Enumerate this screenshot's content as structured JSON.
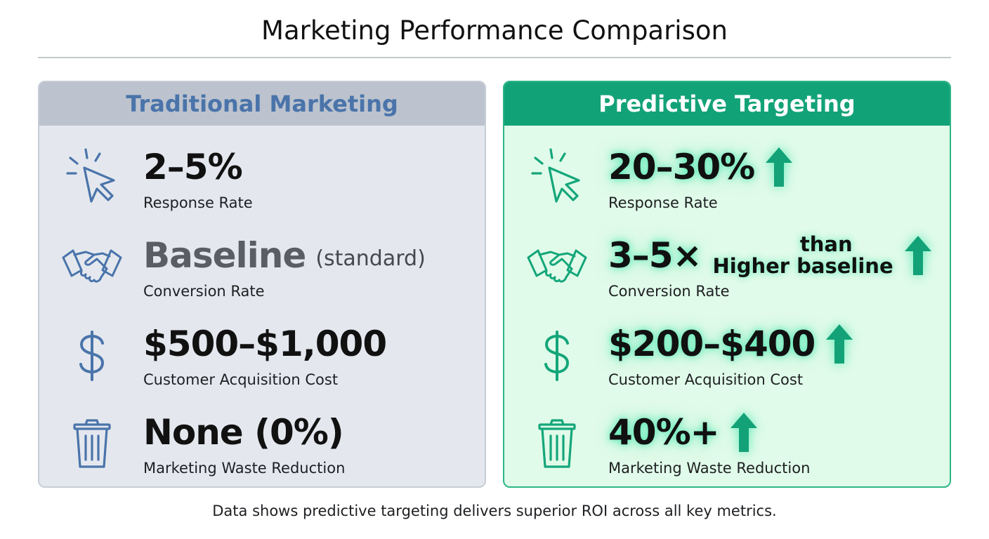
{
  "title": "Marketing Performance Comparison",
  "footer": "Data shows predictive targeting delivers superior ROI across all key metrics.",
  "colors": {
    "traditional_accent": "#4a74aa",
    "traditional_header_bg": "#bcc3ce",
    "predictive_accent": "#12a278",
    "predictive_bg": "#e0fbe9"
  },
  "traditional": {
    "header": "Traditional Marketing",
    "metrics": [
      {
        "icon": "cursor-click-icon",
        "value": "2–5%",
        "label": "Response Rate"
      },
      {
        "icon": "handshake-icon",
        "value": "Baseline",
        "qualifier": "(standard)",
        "label": "Conversion Rate"
      },
      {
        "icon": "dollar-icon",
        "value": "$500–$1,000",
        "label": "Customer Acquisition Cost"
      },
      {
        "icon": "trash-icon",
        "value": "None (0%)",
        "label": "Marketing Waste Reduction"
      }
    ]
  },
  "predictive": {
    "header": "Predictive Targeting",
    "metrics": [
      {
        "icon": "cursor-click-icon",
        "value": "20–30%",
        "label": "Response Rate",
        "trend": "up-arrow-icon"
      },
      {
        "icon": "handshake-icon",
        "value": "3–5×",
        "qualifier_top": "than",
        "qualifier_bottom": "Higher baseline",
        "label": "Conversion Rate",
        "trend": "up-arrow-icon"
      },
      {
        "icon": "dollar-icon",
        "value": "$200–$400",
        "label": "Customer Acquisition Cost",
        "trend": "up-arrow-icon"
      },
      {
        "icon": "trash-icon",
        "value": "40%+",
        "label": "Marketing Waste Reduction",
        "trend": "up-arrow-icon"
      }
    ]
  }
}
